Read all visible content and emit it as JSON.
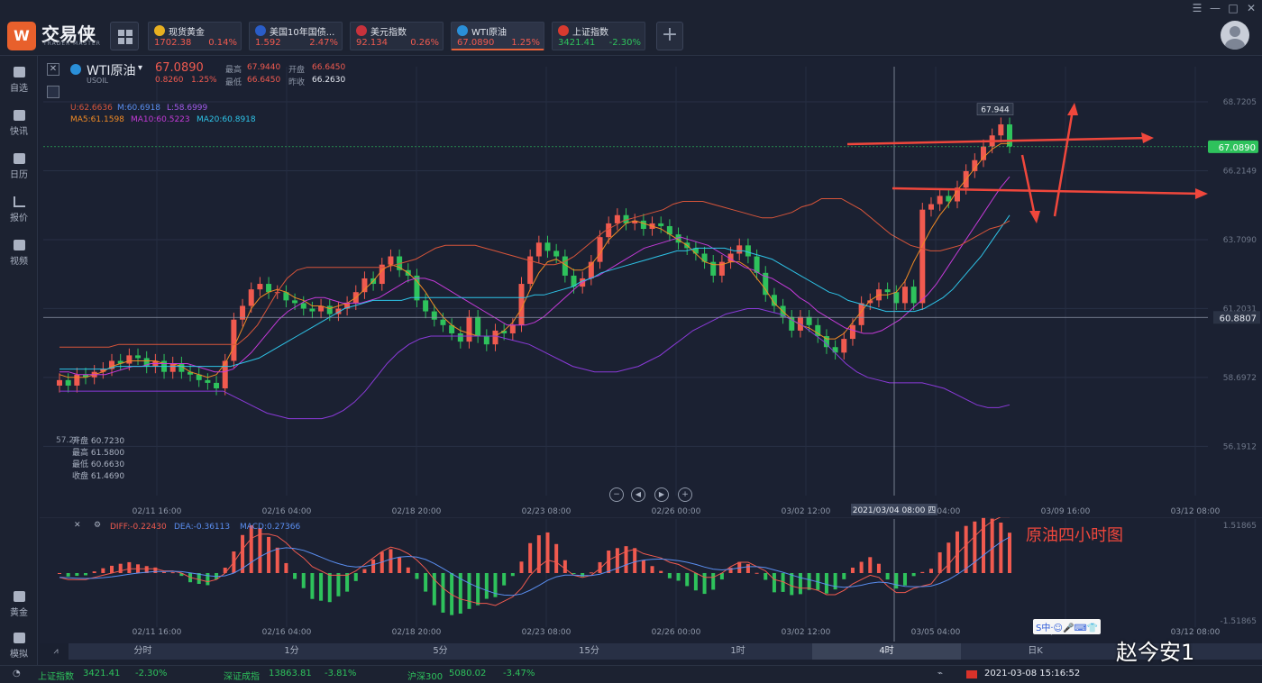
{
  "app": {
    "name": "交易侠",
    "subtitle": "TRADER MASTER",
    "window_controls": [
      "☰",
      "—",
      "□",
      "✕"
    ]
  },
  "quotes": [
    {
      "name": "现货黄金",
      "price": "1702.38",
      "change": "0.14%",
      "dir": "up",
      "icon_color": "#e8b020"
    },
    {
      "name": "美国10年国债...",
      "price": "1.592",
      "change": "2.47%",
      "dir": "up",
      "icon_color": "#2a5dc8"
    },
    {
      "name": "美元指数",
      "price": "92.134",
      "change": "0.26%",
      "dir": "up",
      "icon_color": "#c8323c"
    },
    {
      "name": "WTI原油",
      "price": "67.0890",
      "change": "1.25%",
      "dir": "up",
      "icon_color": "#2a8fd8",
      "active": true
    },
    {
      "name": "上证指数",
      "price": "3421.41",
      "change": "-2.30%",
      "dir": "down",
      "icon_color": "#d83a2f"
    }
  ],
  "sidebar": {
    "items": [
      {
        "label": "自选",
        "icon": "star-icon"
      },
      {
        "label": "快讯",
        "icon": "news-icon"
      },
      {
        "label": "日历",
        "icon": "calendar-icon"
      },
      {
        "label": "报价",
        "icon": "chart-line-icon"
      },
      {
        "label": "视频",
        "icon": "video-icon"
      },
      {
        "label": "黄金",
        "icon": "calculator-icon"
      },
      {
        "label": "模拟",
        "icon": "wallet-icon"
      }
    ]
  },
  "symbol": {
    "name": "WTI原油",
    "code": "USOIL",
    "price": "67.0890",
    "change": "0.8260",
    "change_pct": "1.25%",
    "high_label": "最高",
    "high": "67.9440",
    "open_label": "开盘",
    "open": "66.6450",
    "low_label": "最低",
    "low": "66.6450",
    "prev_label": "昨收",
    "prev": "66.2630"
  },
  "indicators": {
    "boll": {
      "u": "U:62.6636",
      "m": "M:60.6918",
      "l": "L:58.6999"
    },
    "ma": {
      "ma5": "MA5:61.1598",
      "ma10": "MA10:60.5223",
      "ma20": "MA20:60.8918"
    },
    "macd": {
      "diff": "DIFF:-0.22430",
      "dea": "DEA:-0.36113",
      "macd": "MACD:0.27366"
    }
  },
  "hover_box": {
    "open": "开盘 60.7230",
    "high": "最高 61.5800",
    "low": "最低 60.6630",
    "close": "收盘 61.4690",
    "price_marker": "57.26"
  },
  "colors": {
    "up": "#f05a4f",
    "down": "#2ec25c",
    "ma5": "#f08a24",
    "ma10": "#c43ad8",
    "ma20": "#2ec4e8",
    "bollU": "#d8553a",
    "bollL": "#8a3ad8",
    "annotation": "#f0473c"
  },
  "chart_data": {
    "type": "candlestick",
    "title": "原油四小时图",
    "yaxis_ticks": [
      "68.7205",
      "66.2149",
      "63.7090",
      "61.2031",
      "58.6972",
      "56.1912"
    ],
    "ylim": [
      54.4,
      70.0
    ],
    "xaxis_ticks": [
      "02/11 16:00",
      "02/16 04:00",
      "02/18 20:00",
      "02/23 08:00",
      "02/26 00:00",
      "03/02 12:00",
      "03/05 04:00",
      "03/09 16:00",
      "03/12 08:00"
    ],
    "crosshair_label": "2021/03/04 08:00 四",
    "current_price": "67.0890",
    "crosshair_price": "60.8807",
    "peak_label": "67.944",
    "closes": [
      58.6,
      58.4,
      58.8,
      58.7,
      58.9,
      59.0,
      59.3,
      59.2,
      59.5,
      59.4,
      59.1,
      59.3,
      58.9,
      59.2,
      58.9,
      58.8,
      58.6,
      58.5,
      58.3,
      59.3,
      60.8,
      61.3,
      61.9,
      62.1,
      61.8,
      61.8,
      61.5,
      61.4,
      61.2,
      61.1,
      61.3,
      61.0,
      61.2,
      61.4,
      61.8,
      62.3,
      62.1,
      62.8,
      63.1,
      62.6,
      62.4,
      61.5,
      61.1,
      60.8,
      60.6,
      60.3,
      60.0,
      60.9,
      60.2,
      59.9,
      60.4,
      60.3,
      60.6,
      62.1,
      63.1,
      63.6,
      63.3,
      63.1,
      62.4,
      62.0,
      62.3,
      62.9,
      63.8,
      64.3,
      64.6,
      64.3,
      64.4,
      64.1,
      64.3,
      64.2,
      63.9,
      63.6,
      63.4,
      63.2,
      62.9,
      62.4,
      62.9,
      63.2,
      63.5,
      63.1,
      62.5,
      61.7,
      61.3,
      60.9,
      60.4,
      60.9,
      60.6,
      60.2,
      59.8,
      59.6,
      60.1,
      60.6,
      61.4,
      61.5,
      61.9,
      61.8,
      61.4,
      62.0,
      61.4,
      64.8,
      65.0,
      65.3,
      65.1,
      65.6,
      66.2,
      66.6,
      67.1,
      67.5,
      67.9,
      67.1
    ],
    "series": [
      {
        "name": "MA5",
        "values": [
          58.8,
          58.7,
          58.7,
          58.7,
          58.8,
          58.9,
          59.1,
          59.2,
          59.3,
          59.3,
          59.3,
          59.3,
          59.2,
          59.2,
          59.1,
          58.9,
          58.8,
          58.7,
          58.8,
          59.2,
          59.8,
          60.5,
          61.2,
          61.6,
          61.8,
          61.9,
          61.8,
          61.6,
          61.5,
          61.3,
          61.3,
          61.2,
          61.3,
          61.4,
          61.6,
          61.9,
          62.2,
          62.6,
          62.8,
          62.7,
          62.5,
          62.2,
          61.8,
          61.3,
          60.9,
          60.6,
          60.4,
          60.3,
          60.2,
          60.2,
          60.2,
          60.4,
          60.7,
          61.2,
          61.9,
          62.5,
          62.9,
          63.0,
          62.8,
          62.6,
          62.6,
          62.8,
          63.2,
          63.7,
          64.0,
          64.3,
          64.4,
          64.3,
          64.2,
          64.1,
          63.9,
          63.7,
          63.5,
          63.2,
          62.9,
          62.8,
          62.8,
          62.9,
          62.9,
          62.7,
          62.3,
          61.9,
          61.4,
          61.1,
          60.8,
          60.6,
          60.5,
          60.3,
          60.1,
          60.1,
          60.3,
          60.7,
          61.1,
          61.5,
          61.7,
          61.7,
          61.8,
          62.2,
          62.9,
          63.5,
          64.1,
          64.6,
          65.0,
          65.5,
          65.9,
          66.3,
          66.7,
          67.0,
          67.2,
          67.2
        ]
      },
      {
        "name": "MA10",
        "values": [
          58.9,
          58.9,
          58.8,
          58.8,
          58.8,
          58.8,
          58.9,
          59.0,
          59.1,
          59.1,
          59.2,
          59.2,
          59.2,
          59.2,
          59.2,
          59.1,
          59.0,
          58.9,
          58.9,
          59.0,
          59.3,
          59.6,
          60.0,
          60.4,
          60.8,
          61.1,
          61.3,
          61.5,
          61.6,
          61.6,
          61.5,
          61.4,
          61.4,
          61.4,
          61.5,
          61.6,
          61.8,
          62.0,
          62.2,
          62.3,
          62.3,
          62.2,
          62.0,
          61.8,
          61.6,
          61.4,
          61.2,
          61.0,
          60.8,
          60.6,
          60.6,
          60.6,
          60.7,
          60.9,
          61.2,
          61.5,
          61.8,
          62.1,
          62.3,
          62.4,
          62.6,
          62.8,
          63.0,
          63.2,
          63.4,
          63.5,
          63.6,
          63.7,
          63.8,
          63.7,
          63.6,
          63.5,
          63.3,
          63.1,
          62.9,
          62.7,
          62.6,
          62.4,
          62.3,
          62.1,
          61.9,
          61.6,
          61.4,
          61.1,
          60.9,
          60.7,
          60.5,
          60.4,
          60.3,
          60.3,
          60.4,
          60.6,
          60.8,
          61.1,
          61.4,
          61.7,
          62.1,
          62.6,
          63.1,
          63.6,
          64.1,
          64.6,
          65.1,
          65.6,
          66.0
        ]
      },
      {
        "name": "MA20",
        "values": [
          59.0,
          59.0,
          59.0,
          59.0,
          59.0,
          59.0,
          59.1,
          59.1,
          59.1,
          59.1,
          59.1,
          59.1,
          59.1,
          59.1,
          59.1,
          59.1,
          59.1,
          59.1,
          59.1,
          59.2,
          59.3,
          59.4,
          59.6,
          59.8,
          60.0,
          60.2,
          60.4,
          60.6,
          60.8,
          61.0,
          61.2,
          61.3,
          61.4,
          61.5,
          61.5,
          61.5,
          61.5,
          61.6,
          61.6,
          61.6,
          61.6,
          61.6,
          61.6,
          61.6,
          61.6,
          61.6,
          61.6,
          61.6,
          61.6,
          61.6,
          61.7,
          61.7,
          61.8,
          61.9,
          62.0,
          62.2,
          62.3,
          62.5,
          62.6,
          62.7,
          62.8,
          62.9,
          63.0,
          63.1,
          63.2,
          63.3,
          63.3,
          63.4,
          63.4,
          63.4,
          63.4,
          63.3,
          63.3,
          63.2,
          63.1,
          63.0,
          62.8,
          62.6,
          62.4,
          62.2,
          62.0,
          61.8,
          61.7,
          61.5,
          61.4,
          61.3,
          61.2,
          61.1,
          61.1,
          61.1,
          61.1,
          61.2,
          61.4,
          61.6,
          61.9,
          62.3,
          62.7,
          63.1,
          63.6,
          64.1,
          64.6
        ]
      },
      {
        "name": "BOLL-U",
        "values": [
          59.8,
          59.8,
          59.8,
          59.8,
          59.8,
          59.8,
          59.9,
          59.9,
          59.9,
          59.9,
          59.9,
          59.9,
          59.9,
          59.9,
          59.9,
          59.9,
          59.9,
          59.9,
          59.9,
          60.2,
          60.6,
          61.2,
          61.8,
          62.3,
          62.6,
          62.7,
          62.7,
          62.7,
          62.7,
          62.7,
          62.7,
          62.7,
          62.7,
          62.7,
          62.8,
          62.9,
          63.0,
          63.2,
          63.4,
          63.5,
          63.5,
          63.5,
          63.5,
          63.4,
          63.3,
          63.2,
          63.1,
          63.0,
          62.9,
          62.8,
          62.8,
          62.9,
          63.1,
          63.4,
          63.7,
          64.0,
          64.2,
          64.4,
          64.5,
          64.6,
          64.7,
          64.8,
          65.0,
          65.1,
          65.1,
          65.1,
          65.0,
          64.9,
          64.8,
          64.7,
          64.6,
          64.5,
          64.5,
          64.6,
          64.7,
          64.9,
          65.0,
          65.2,
          65.2,
          65.2,
          65.0,
          64.8,
          64.5,
          64.2,
          63.9,
          63.7,
          63.5,
          63.4,
          63.3,
          63.3,
          63.4,
          63.5,
          63.7,
          63.9,
          64.1,
          64.2,
          64.4
        ]
      },
      {
        "name": "BOLL-L",
        "values": [
          58.2,
          58.2,
          58.2,
          58.2,
          58.2,
          58.2,
          58.2,
          58.2,
          58.2,
          58.2,
          58.2,
          58.2,
          58.2,
          58.2,
          58.2,
          58.2,
          58.0,
          57.8,
          57.6,
          57.4,
          57.3,
          57.2,
          57.2,
          57.2,
          57.2,
          57.3,
          57.5,
          57.8,
          58.2,
          58.7,
          59.2,
          59.6,
          59.9,
          60.1,
          60.2,
          60.2,
          60.2,
          60.2,
          60.2,
          60.2,
          60.2,
          60.1,
          60.0,
          59.9,
          59.7,
          59.5,
          59.3,
          59.1,
          59.0,
          58.9,
          58.9,
          58.9,
          59.0,
          59.1,
          59.3,
          59.5,
          59.8,
          60.1,
          60.4,
          60.6,
          60.8,
          61.0,
          61.1,
          61.2,
          61.2,
          61.1,
          61.0,
          60.8,
          60.6,
          60.3,
          60.0,
          59.6,
          59.2,
          58.9,
          58.7,
          58.6,
          58.5,
          58.5,
          58.5,
          58.5,
          58.4,
          58.3,
          58.1,
          57.9,
          57.7,
          57.6,
          57.6,
          57.7
        ]
      }
    ],
    "macd_ylim": [
      -1.51865,
      1.51865
    ],
    "macd_ticks": [
      "1.51865",
      "-1.51865"
    ]
  },
  "chart_controls": [
    "zoom-out",
    "prev",
    "next",
    "zoom-in"
  ],
  "periods": [
    "分时",
    "1分",
    "5分",
    "15分",
    "1时",
    "4时",
    "日K"
  ],
  "selected_period": "4时",
  "status": {
    "items": [
      {
        "name": "上证指数",
        "value": "3421.41",
        "change": "-2.30%"
      },
      {
        "name": "深证成指",
        "value": "13863.81",
        "change": "-3.81%"
      },
      {
        "name": "沪深300",
        "value": "5080.02",
        "change": "-3.47%"
      }
    ],
    "datetime": "2021-03-08 15:16:52"
  },
  "annotation": "原油四小时图",
  "watermark": "赵今安1",
  "ime_toolbar": "S中·☺🎤⌨👕"
}
